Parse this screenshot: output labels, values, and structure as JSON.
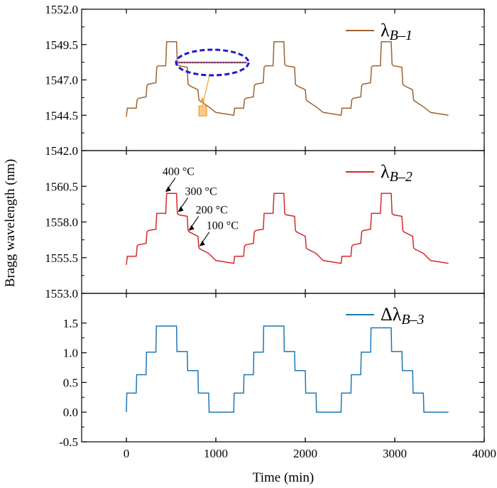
{
  "chart_data": {
    "type": "line",
    "xlabel": "Time (min)",
    "ylabel": "Bragg wavelength (nm)",
    "xlim": [
      -500,
      4000
    ],
    "x_ticks": [
      0,
      1000,
      2000,
      3000,
      4000
    ],
    "x_tick_labels": [
      "0",
      "1000",
      "2000",
      "3000",
      "4000"
    ],
    "panels": [
      {
        "legend_symbol": "λ",
        "legend_subscript": "B–1",
        "legend_position": "top-right",
        "color": "#a0622d",
        "ylim": [
          1542.0,
          1552.0
        ],
        "y_ticks": [
          1542.0,
          1544.5,
          1547.0,
          1549.5,
          1552.0
        ],
        "y_tick_labels": [
          "1542.0",
          "1544.5",
          "1547.0",
          "1549.5",
          "1552.0"
        ],
        "x": [
          0,
          10,
          25,
          110,
          120,
          135,
          220,
          230,
          245,
          330,
          340,
          355,
          440,
          450,
          465,
          560,
          570,
          585,
          680,
          690,
          705,
          800,
          810,
          825,
          920,
          1000,
          1100,
          1200,
          1210,
          1225,
          1310,
          1320,
          1335,
          1420,
          1430,
          1445,
          1530,
          1540,
          1555,
          1640,
          1650,
          1665,
          1760,
          1770,
          1785,
          1880,
          1890,
          1905,
          2000,
          2010,
          2025,
          2120,
          2200,
          2300,
          2400,
          2410,
          2425,
          2510,
          2520,
          2535,
          2620,
          2630,
          2645,
          2730,
          2740,
          2755,
          2840,
          2850,
          2865,
          2960,
          2970,
          2985,
          3080,
          3090,
          3105,
          3200,
          3210,
          3225,
          3320,
          3400,
          3500,
          3600
        ],
        "values": [
          1544.4,
          1545.0,
          1545.0,
          1545.0,
          1545.6,
          1545.7,
          1545.8,
          1546.6,
          1546.7,
          1546.8,
          1547.9,
          1548.0,
          1548.0,
          1549.7,
          1549.7,
          1549.7,
          1548.1,
          1548.0,
          1547.9,
          1546.7,
          1546.6,
          1546.3,
          1545.6,
          1545.5,
          1545.1,
          1544.7,
          1544.6,
          1544.5,
          1545.0,
          1545.0,
          1545.0,
          1545.6,
          1545.7,
          1545.8,
          1546.6,
          1546.7,
          1546.8,
          1547.9,
          1548.0,
          1548.0,
          1549.7,
          1549.7,
          1549.7,
          1548.1,
          1548.0,
          1547.9,
          1546.7,
          1546.6,
          1546.3,
          1545.6,
          1545.5,
          1545.1,
          1544.7,
          1544.6,
          1544.5,
          1545.0,
          1545.0,
          1545.0,
          1545.6,
          1545.7,
          1545.8,
          1546.6,
          1546.7,
          1546.8,
          1547.9,
          1548.0,
          1548.0,
          1549.7,
          1549.7,
          1549.7,
          1548.1,
          1548.0,
          1547.9,
          1546.7,
          1546.6,
          1546.3,
          1545.6,
          1545.5,
          1545.1,
          1544.7,
          1544.6,
          1544.5
        ]
      },
      {
        "legend_symbol": "λ",
        "legend_subscript": "B–2",
        "legend_position": "top-right",
        "color": "#d42a2a",
        "ylim": [
          1553.0,
          1563.0
        ],
        "y_ticks": [
          1553.0,
          1555.5,
          1558.0,
          1560.5
        ],
        "y_tick_labels": [
          "1553.0",
          "1555.5",
          "1558.0",
          "1560.5"
        ],
        "x": [
          0,
          10,
          25,
          110,
          120,
          135,
          220,
          230,
          245,
          330,
          340,
          355,
          440,
          450,
          465,
          560,
          570,
          585,
          680,
          690,
          705,
          800,
          810,
          825,
          920,
          1000,
          1100,
          1200,
          1210,
          1225,
          1310,
          1320,
          1335,
          1420,
          1430,
          1445,
          1530,
          1540,
          1555,
          1640,
          1650,
          1665,
          1760,
          1770,
          1785,
          1880,
          1890,
          1905,
          2000,
          2010,
          2025,
          2120,
          2200,
          2300,
          2400,
          2410,
          2425,
          2510,
          2520,
          2535,
          2620,
          2630,
          2645,
          2730,
          2740,
          2755,
          2840,
          2850,
          2865,
          2960,
          2970,
          2985,
          3080,
          3090,
          3105,
          3200,
          3210,
          3225,
          3320,
          3400,
          3500,
          3600
        ],
        "values": [
          1555.0,
          1555.6,
          1555.6,
          1555.6,
          1556.3,
          1556.4,
          1556.5,
          1557.3,
          1557.4,
          1557.5,
          1558.6,
          1558.6,
          1558.6,
          1560.0,
          1560.0,
          1560.0,
          1558.6,
          1558.5,
          1558.4,
          1557.4,
          1557.3,
          1557.0,
          1556.2,
          1556.1,
          1555.8,
          1555.3,
          1555.2,
          1555.1,
          1555.6,
          1555.6,
          1555.6,
          1556.3,
          1556.4,
          1556.5,
          1557.3,
          1557.4,
          1557.5,
          1558.6,
          1558.6,
          1558.6,
          1560.0,
          1560.0,
          1560.0,
          1558.6,
          1558.5,
          1558.4,
          1557.4,
          1557.3,
          1557.0,
          1556.2,
          1556.1,
          1555.8,
          1555.3,
          1555.2,
          1555.1,
          1555.6,
          1555.6,
          1555.6,
          1556.3,
          1556.4,
          1556.5,
          1557.3,
          1557.4,
          1557.5,
          1558.6,
          1558.6,
          1558.6,
          1560.0,
          1560.0,
          1560.0,
          1558.6,
          1558.5,
          1558.4,
          1557.4,
          1557.3,
          1557.0,
          1556.2,
          1556.1,
          1555.8,
          1555.3,
          1555.2,
          1555.1
        ],
        "annotations": [
          "400 °C",
          "300 °C",
          "200 °C",
          "100 °C"
        ],
        "annotation_targets": [
          [
            420,
            1560.0
          ],
          [
            560,
            1558.6
          ],
          [
            680,
            1557.3
          ],
          [
            800,
            1556.2
          ]
        ]
      },
      {
        "legend_symbol": "Δλ",
        "legend_subscript": "B–3",
        "legend_position": "top-right",
        "color": "#1f77b4",
        "ylim": [
          -0.5,
          2.0
        ],
        "y_ticks": [
          -0.5,
          0.0,
          0.5,
          1.0,
          1.5
        ],
        "y_tick_labels": [
          "-0.5",
          "0.0",
          "0.5",
          "1.0",
          "1.5"
        ],
        "x": [
          0,
          5,
          110,
          115,
          220,
          225,
          330,
          335,
          440,
          445,
          560,
          565,
          680,
          685,
          800,
          805,
          920,
          925,
          1200,
          1205,
          1310,
          1315,
          1420,
          1425,
          1530,
          1535,
          1640,
          1645,
          1760,
          1765,
          1880,
          1885,
          2000,
          2005,
          2120,
          2125,
          2400,
          2405,
          2510,
          2515,
          2620,
          2625,
          2730,
          2735,
          2840,
          2845,
          2960,
          2965,
          3080,
          3085,
          3200,
          3205,
          3320,
          3325,
          3600
        ],
        "values": [
          0.0,
          0.32,
          0.32,
          0.63,
          0.63,
          1.01,
          1.01,
          1.45,
          1.45,
          1.45,
          1.45,
          1.02,
          1.02,
          0.7,
          0.7,
          0.32,
          0.32,
          0.0,
          0.0,
          0.32,
          0.32,
          0.63,
          0.63,
          1.01,
          1.01,
          1.45,
          1.45,
          1.45,
          1.45,
          1.02,
          1.02,
          0.7,
          0.7,
          0.32,
          0.32,
          0.0,
          0.0,
          0.32,
          0.32,
          0.63,
          0.63,
          1.01,
          1.01,
          1.42,
          1.42,
          1.42,
          1.42,
          1.02,
          1.02,
          0.7,
          0.7,
          0.32,
          0.32,
          0.0,
          0.0
        ]
      }
    ],
    "inset": {
      "marker_box": [
        850,
        1544.8
      ],
      "ellipse_color": "#1a1acc",
      "box_color": "#f0a030"
    }
  }
}
